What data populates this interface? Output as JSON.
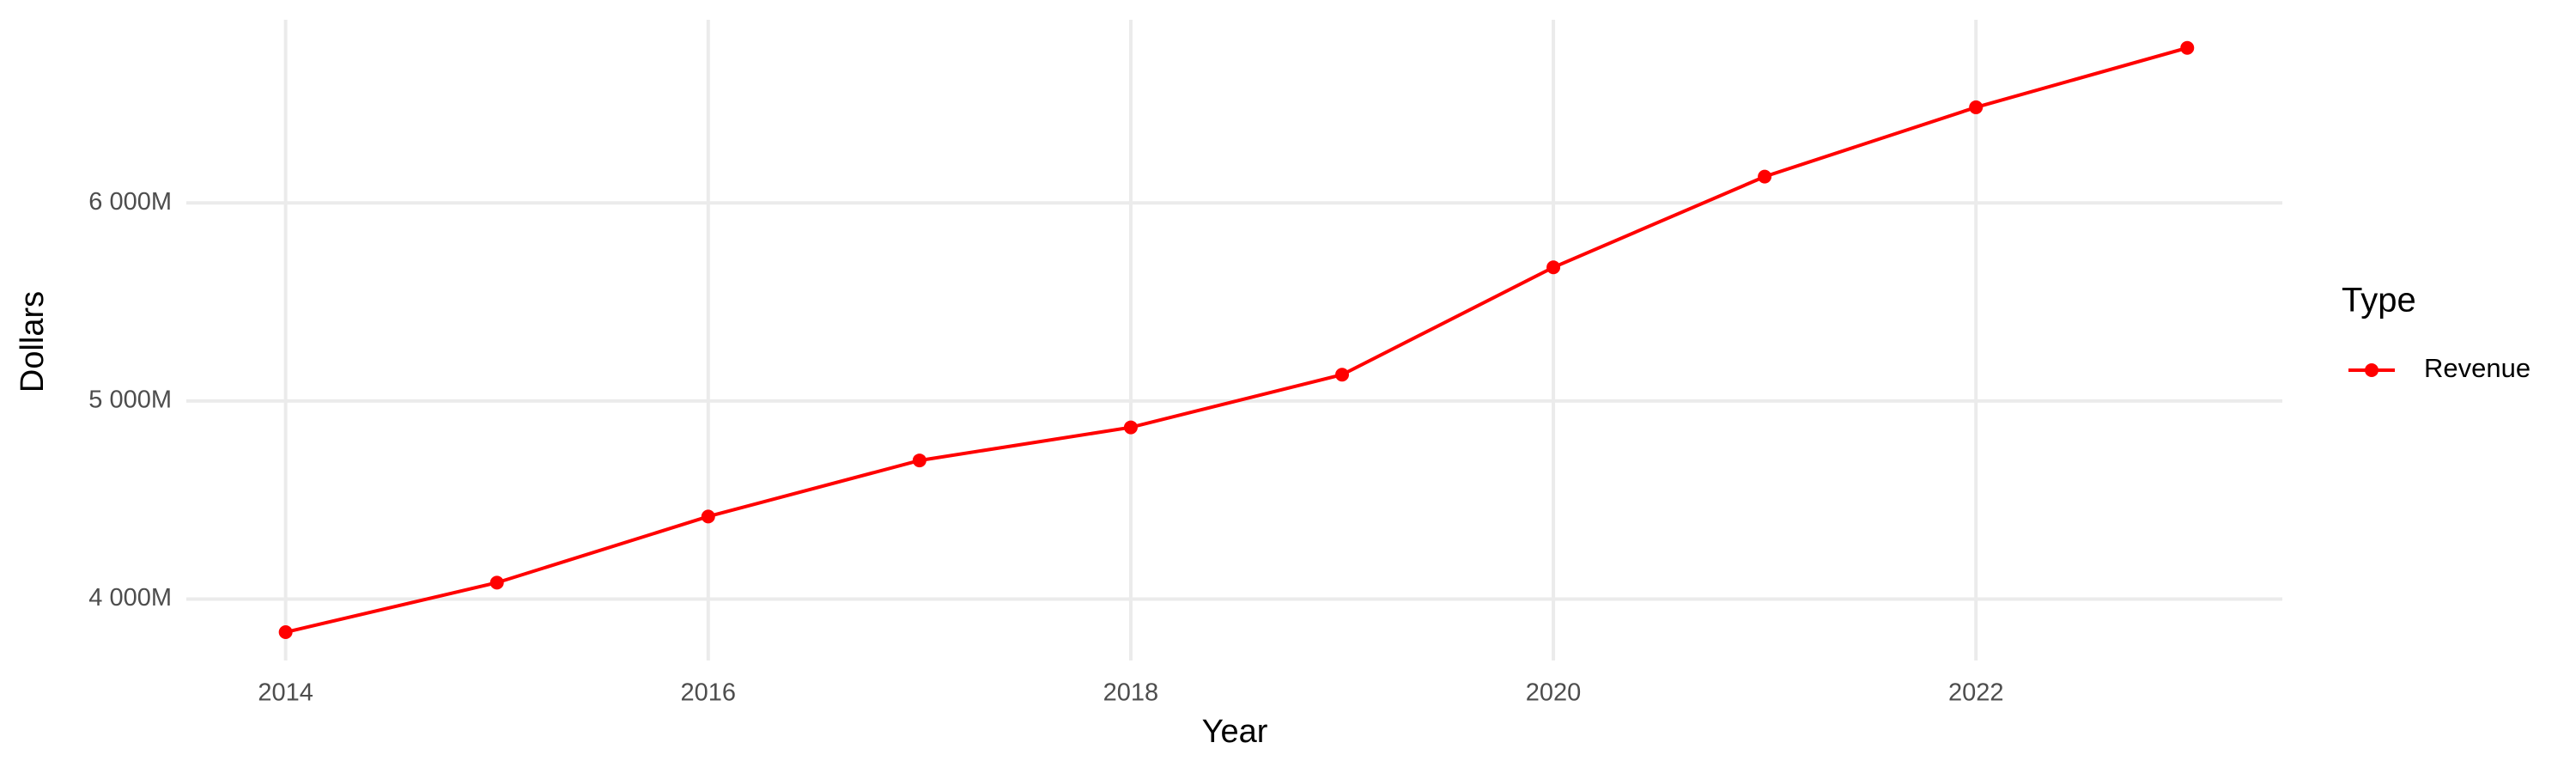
{
  "chart_data": {
    "type": "line",
    "x_label": "Year",
    "y_label": "Dollars",
    "x": [
      2014,
      2015,
      2016,
      2017,
      2018,
      2019,
      2020,
      2021,
      2022,
      2023
    ],
    "series": [
      {
        "name": "Revenue",
        "color": "#ff0000",
        "values": [
          3833000000,
          4083000000,
          4417000000,
          4700000000,
          4867000000,
          5133000000,
          5675000000,
          6133000000,
          6483000000,
          6783000000
        ]
      }
    ],
    "xlim": [
      2013.53,
      2023.45
    ],
    "xticks": [
      2014,
      2016,
      2018,
      2020,
      2022
    ],
    "ylim": [
      3690000000,
      6925000000
    ],
    "yticks": [
      {
        "value": 4000000000,
        "label": "4 000M"
      },
      {
        "value": 5000000000,
        "label": "5 000M"
      },
      {
        "value": 6000000000,
        "label": "6 000M"
      }
    ],
    "grid": true,
    "legend_title": "Type",
    "legend_position": "right"
  }
}
